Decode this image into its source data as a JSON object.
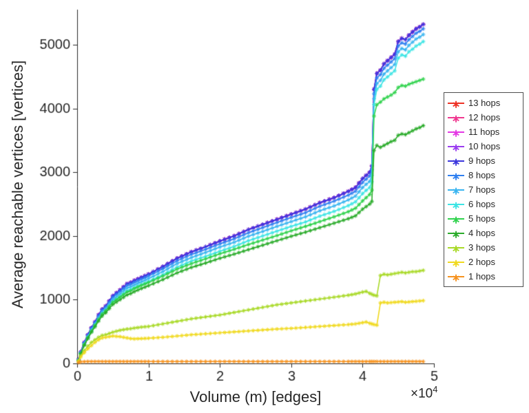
{
  "figure": {
    "background": "#ffffff",
    "axis_color": "#262626",
    "xlabel": "Volume (m) [edges]",
    "ylabel": "Average reachable vertices [vertices]",
    "x_exponent_base": "×10",
    "x_exponent_power": "4"
  },
  "chart_data": {
    "type": "line",
    "title": "",
    "xlabel": "Volume (m) [edges]",
    "ylabel": "Average reachable vertices [vertices]",
    "xlim": [
      0,
      50000
    ],
    "ylim": [
      0,
      5550
    ],
    "x_ticks": [
      0,
      10000,
      20000,
      30000,
      40000,
      50000
    ],
    "x_tick_labels": [
      "0",
      "1",
      "2",
      "3",
      "4",
      "5"
    ],
    "x_scale_note": "×10^4",
    "y_ticks": [
      0,
      1000,
      2000,
      3000,
      4000,
      5000
    ],
    "y_tick_labels": [
      "0",
      "1000",
      "2000",
      "3000",
      "4000",
      "5000"
    ],
    "grid": false,
    "legend_position": "outside-right",
    "marker": "asterisk",
    "x": [
      200,
      500,
      1000,
      1500,
      2000,
      2500,
      3000,
      3500,
      4000,
      5000,
      6000,
      7000,
      7500,
      8000,
      9000,
      10000,
      12000,
      14000,
      16000,
      18000,
      20000,
      22000,
      24000,
      26000,
      28000,
      30000,
      32000,
      34000,
      36000,
      38000,
      39000,
      40000,
      40500,
      41000,
      41300,
      41600,
      42000,
      42500,
      43000,
      43500,
      44000,
      44500,
      45000,
      45500,
      46000,
      46500,
      47000,
      47500,
      48000,
      48500
    ],
    "series": [
      {
        "name": "13 hops",
        "color": "#ed3124",
        "values": [
          60,
          180,
          330,
          450,
          560,
          650,
          760,
          850,
          900,
          1060,
          1150,
          1250,
          1270,
          1300,
          1350,
          1400,
          1520,
          1650,
          1750,
          1830,
          1920,
          2000,
          2100,
          2180,
          2260,
          2340,
          2420,
          2520,
          2600,
          2700,
          2760,
          2900,
          2950,
          3000,
          3100,
          4300,
          4550,
          4600,
          4700,
          4750,
          4800,
          4850,
          5050,
          5100,
          5080,
          5150,
          5200,
          5250,
          5280,
          5320
        ]
      },
      {
        "name": "12 hops",
        "color": "#f0368f",
        "values": [
          60,
          180,
          330,
          450,
          560,
          650,
          760,
          850,
          900,
          1060,
          1150,
          1250,
          1270,
          1300,
          1350,
          1400,
          1520,
          1650,
          1750,
          1830,
          1920,
          2000,
          2100,
          2180,
          2260,
          2340,
          2420,
          2520,
          2600,
          2700,
          2760,
          2900,
          2950,
          3000,
          3100,
          4300,
          4550,
          4600,
          4700,
          4750,
          4800,
          4850,
          5050,
          5100,
          5080,
          5150,
          5200,
          5250,
          5280,
          5320
        ]
      },
      {
        "name": "11 hops",
        "color": "#e436e4",
        "values": [
          60,
          180,
          330,
          450,
          560,
          650,
          760,
          850,
          900,
          1060,
          1150,
          1250,
          1270,
          1300,
          1350,
          1400,
          1520,
          1650,
          1750,
          1830,
          1920,
          2000,
          2100,
          2180,
          2260,
          2340,
          2420,
          2520,
          2600,
          2700,
          2760,
          2900,
          2950,
          3000,
          3100,
          4300,
          4550,
          4600,
          4700,
          4750,
          4800,
          4850,
          5050,
          5100,
          5080,
          5150,
          5200,
          5250,
          5280,
          5320
        ]
      },
      {
        "name": "10 hops",
        "color": "#9a3cf0",
        "values": [
          60,
          180,
          330,
          450,
          560,
          650,
          760,
          850,
          900,
          1060,
          1150,
          1250,
          1270,
          1300,
          1350,
          1400,
          1520,
          1650,
          1750,
          1830,
          1920,
          2000,
          2100,
          2180,
          2260,
          2340,
          2420,
          2520,
          2600,
          2700,
          2760,
          2900,
          2950,
          3000,
          3100,
          4300,
          4550,
          4600,
          4700,
          4750,
          4800,
          4850,
          5050,
          5100,
          5080,
          5150,
          5200,
          5250,
          5280,
          5320
        ]
      },
      {
        "name": "9 hops",
        "color": "#3a35dc",
        "values": [
          60,
          180,
          330,
          450,
          560,
          650,
          760,
          850,
          900,
          1060,
          1150,
          1250,
          1270,
          1300,
          1350,
          1400,
          1520,
          1650,
          1750,
          1830,
          1920,
          2000,
          2100,
          2180,
          2260,
          2340,
          2420,
          2520,
          2600,
          2700,
          2760,
          2900,
          2950,
          3000,
          3100,
          4300,
          4550,
          4600,
          4700,
          4750,
          4800,
          4850,
          5050,
          5100,
          5080,
          5150,
          5200,
          5250,
          5280,
          5320
        ]
      },
      {
        "name": "8 hops",
        "color": "#2e7ff0",
        "values": [
          55,
          170,
          320,
          435,
          545,
          635,
          740,
          830,
          880,
          1035,
          1125,
          1220,
          1240,
          1270,
          1320,
          1370,
          1485,
          1610,
          1710,
          1790,
          1875,
          1955,
          2050,
          2130,
          2210,
          2290,
          2365,
          2465,
          2545,
          2640,
          2700,
          2840,
          2890,
          2940,
          3040,
          4230,
          4480,
          4530,
          4630,
          4680,
          4730,
          4780,
          4980,
          5030,
          5010,
          5080,
          5130,
          5180,
          5210,
          5250
        ]
      },
      {
        "name": "7 hops",
        "color": "#38b4f0",
        "values": [
          50,
          160,
          305,
          420,
          525,
          615,
          715,
          805,
          855,
          1000,
          1090,
          1180,
          1200,
          1230,
          1280,
          1330,
          1440,
          1565,
          1660,
          1740,
          1825,
          1900,
          1995,
          2070,
          2150,
          2225,
          2300,
          2395,
          2470,
          2565,
          2625,
          2760,
          2810,
          2855,
          2950,
          4150,
          4390,
          4440,
          4540,
          4590,
          4640,
          4690,
          4890,
          4940,
          4920,
          4990,
          5040,
          5090,
          5120,
          5160
        ]
      },
      {
        "name": "6 hops",
        "color": "#3ce4e4",
        "values": [
          45,
          150,
          290,
          405,
          505,
          595,
          690,
          775,
          825,
          965,
          1050,
          1140,
          1160,
          1185,
          1235,
          1285,
          1390,
          1510,
          1605,
          1680,
          1760,
          1835,
          1925,
          2000,
          2075,
          2150,
          2220,
          2310,
          2385,
          2475,
          2535,
          2665,
          2715,
          2760,
          2850,
          4060,
          4300,
          4350,
          4450,
          4495,
          4545,
          4590,
          4790,
          4840,
          4820,
          4890,
          4930,
          4980,
          5010,
          5050
        ]
      },
      {
        "name": "5 hops",
        "color": "#2fd24c",
        "values": [
          48,
          155,
          295,
          405,
          505,
          595,
          690,
          775,
          825,
          960,
          1040,
          1120,
          1140,
          1175,
          1225,
          1270,
          1370,
          1480,
          1565,
          1640,
          1720,
          1790,
          1865,
          1935,
          2005,
          2080,
          2150,
          2225,
          2300,
          2380,
          2435,
          2550,
          2600,
          2650,
          2720,
          3880,
          4060,
          4100,
          4150,
          4180,
          4210,
          4250,
          4330,
          4360,
          4350,
          4380,
          4400,
          4420,
          4440,
          4460
        ]
      },
      {
        "name": "4 hops",
        "color": "#2aab2a",
        "values": [
          45,
          150,
          285,
          390,
          490,
          575,
          665,
          745,
          795,
          925,
          1000,
          1075,
          1095,
          1125,
          1175,
          1220,
          1315,
          1420,
          1505,
          1575,
          1650,
          1715,
          1785,
          1855,
          1925,
          1995,
          2060,
          2130,
          2200,
          2270,
          2315,
          2420,
          2460,
          2500,
          2540,
          3340,
          3420,
          3390,
          3420,
          3450,
          3480,
          3500,
          3580,
          3600,
          3590,
          3620,
          3650,
          3680,
          3700,
          3730
        ]
      },
      {
        "name": "3 hops",
        "color": "#a8d926",
        "values": [
          40,
          120,
          200,
          270,
          330,
          370,
          410,
          440,
          450,
          490,
          520,
          540,
          545,
          555,
          570,
          580,
          620,
          660,
          700,
          730,
          760,
          800,
          840,
          880,
          920,
          950,
          980,
          1010,
          1040,
          1070,
          1090,
          1120,
          1130,
          1100,
          1085,
          1070,
          1060,
          1380,
          1400,
          1390,
          1400,
          1410,
          1420,
          1430,
          1420,
          1430,
          1440,
          1440,
          1450,
          1460
        ]
      },
      {
        "name": "2 hops",
        "color": "#f0d91e",
        "values": [
          30,
          100,
          170,
          230,
          280,
          330,
          370,
          400,
          410,
          430,
          420,
          400,
          390,
          385,
          390,
          395,
          410,
          430,
          450,
          465,
          480,
          495,
          510,
          525,
          540,
          550,
          565,
          580,
          595,
          610,
          620,
          640,
          650,
          630,
          620,
          610,
          600,
          950,
          960,
          950,
          955,
          960,
          965,
          970,
          960,
          965,
          970,
          975,
          980,
          985
        ]
      },
      {
        "name": "1 hops",
        "color": "#f6921e",
        "values": [
          15,
          25,
          28,
          30,
          30,
          30,
          30,
          30,
          30,
          30,
          30,
          30,
          30,
          30,
          30,
          30,
          30,
          30,
          30,
          30,
          30,
          30,
          30,
          30,
          30,
          30,
          30,
          30,
          30,
          30,
          30,
          30,
          30,
          30,
          30,
          30,
          30,
          30,
          30,
          30,
          30,
          30,
          30,
          30,
          30,
          30,
          30,
          30,
          30,
          30
        ]
      }
    ]
  }
}
